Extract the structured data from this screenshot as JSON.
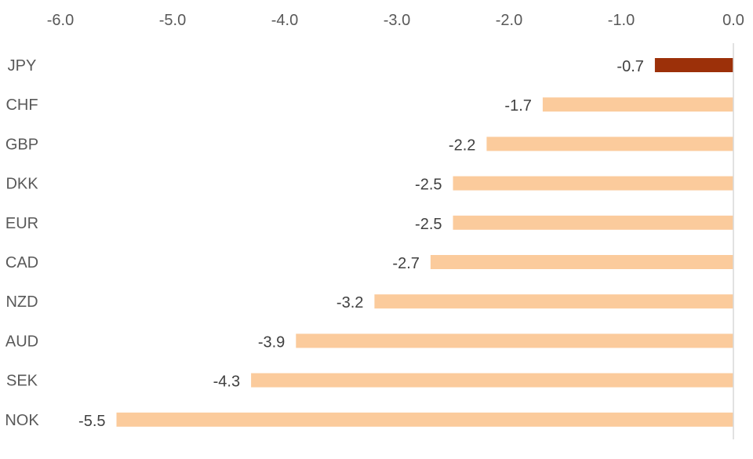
{
  "chart_data": {
    "type": "bar",
    "orientation": "horizontal",
    "categories": [
      "JPY",
      "CHF",
      "GBP",
      "DKK",
      "EUR",
      "CAD",
      "NZD",
      "AUD",
      "SEK",
      "NOK"
    ],
    "values": [
      -0.7,
      -1.7,
      -2.2,
      -2.5,
      -2.5,
      -2.7,
      -3.2,
      -3.9,
      -4.3,
      -5.5
    ],
    "data_labels": [
      "-0.7",
      "-1.7",
      "-2.2",
      "-2.5",
      "-2.5",
      "-2.7",
      "-3.2",
      "-3.9",
      "-4.3",
      "-5.5"
    ],
    "xlim": [
      -6.0,
      0.0
    ],
    "x_ticks": [
      "-6.0",
      "-5.0",
      "-4.0",
      "-3.0",
      "-2.0",
      "-1.0",
      "0.0"
    ],
    "x_axis_position": "top",
    "title": "",
    "xlabel": "",
    "ylabel": "",
    "grid": false,
    "legend": "none",
    "colors": {
      "highlight": "#9C3009",
      "default": "#FBCB9C",
      "axis_line": "#D9D9D9",
      "label_text": "#595959",
      "data_label_text": "#404040"
    },
    "highlight_category": "JPY"
  }
}
